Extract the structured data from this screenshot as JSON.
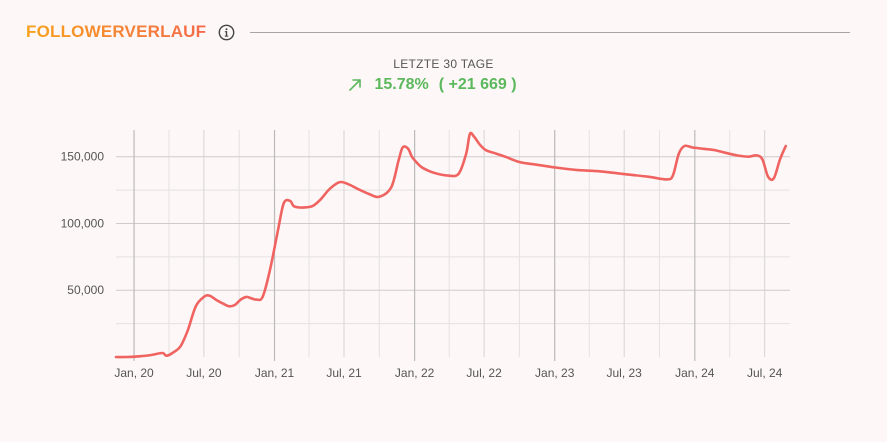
{
  "header": {
    "title": "FOLLOWERVERLAUF",
    "info_icon": "info-circle-icon"
  },
  "summary": {
    "period_label": "LETZTE 30 TAGE",
    "trend_icon": "arrow-up-right-icon",
    "percent_change": "15.78%",
    "absolute_change": "( +21 669 )",
    "positive_color": "#5cb85c"
  },
  "chart_data": {
    "type": "line",
    "title": "",
    "xlabel": "",
    "ylabel": "",
    "x_ticks": [
      "Jan, 20",
      "Jul, 20",
      "Jan, 21",
      "Jul, 21",
      "Jan, 22",
      "Jul, 22",
      "Jan, 23",
      "Jul, 23",
      "Jan, 24",
      "Jul, 24"
    ],
    "y_ticks": [
      "50,000",
      "100,000",
      "150,000"
    ],
    "y_tick_values": [
      50000,
      100000,
      150000
    ],
    "xlim": [
      "2019-11-15",
      "2024-09-05"
    ],
    "ylim": [
      0,
      170000
    ],
    "grid": true,
    "line_color": "#ef6461",
    "series": [
      {
        "x": [
          "2019-11-15",
          "2019-12-15",
          "2020-01-15",
          "2020-02-15",
          "2020-03-15",
          "2020-03-25",
          "2020-04-10",
          "2020-05-01",
          "2020-05-20",
          "2020-06-10",
          "2020-07-01",
          "2020-07-15",
          "2020-08-01",
          "2020-08-20",
          "2020-09-05",
          "2020-09-20",
          "2020-10-05",
          "2020-10-20",
          "2020-11-01",
          "2020-11-15",
          "2020-12-01",
          "2020-12-20",
          "2021-01-10",
          "2021-01-25",
          "2021-02-10",
          "2021-02-20",
          "2021-03-05",
          "2021-03-20",
          "2021-04-10",
          "2021-05-01",
          "2021-05-25",
          "2021-06-20",
          "2021-07-15",
          "2021-08-05",
          "2021-08-20",
          "2021-09-05",
          "2021-10-01",
          "2021-11-01",
          "2021-11-20",
          "2021-12-01",
          "2021-12-15",
          "2021-12-25",
          "2022-01-05",
          "2022-01-20",
          "2022-02-10",
          "2022-03-05",
          "2022-03-25",
          "2022-04-25",
          "2022-05-15",
          "2022-05-25",
          "2022-06-05",
          "2022-06-20",
          "2022-07-05",
          "2022-07-25",
          "2022-08-25",
          "2022-10-01",
          "2022-11-15",
          "2023-01-01",
          "2023-03-01",
          "2023-05-01",
          "2023-07-01",
          "2023-09-01",
          "2023-10-20",
          "2023-11-05",
          "2023-11-20",
          "2023-12-05",
          "2023-12-25",
          "2024-01-20",
          "2024-02-20",
          "2024-03-20",
          "2024-04-20",
          "2024-05-20",
          "2024-06-10",
          "2024-06-25",
          "2024-07-10",
          "2024-07-25",
          "2024-08-10",
          "2024-08-25"
        ],
        "y": [
          0,
          0,
          500,
          1500,
          3000,
          1000,
          3000,
          8000,
          20000,
          38000,
          45000,
          46000,
          43000,
          40000,
          38000,
          39000,
          43000,
          45000,
          44000,
          43000,
          45000,
          65000,
          95000,
          115000,
          117000,
          113000,
          112000,
          112000,
          113000,
          118000,
          126000,
          131000,
          129000,
          126000,
          124000,
          122000,
          120000,
          127000,
          147000,
          157000,
          156000,
          150000,
          146000,
          142000,
          139000,
          137000,
          136000,
          137000,
          152000,
          167000,
          165000,
          159000,
          155000,
          153000,
          150000,
          146000,
          144000,
          142000,
          140000,
          139000,
          137000,
          135000,
          133000,
          136000,
          152000,
          158000,
          157000,
          156000,
          155000,
          153000,
          151000,
          150000,
          151000,
          148000,
          135000,
          134000,
          148000,
          158000
        ]
      }
    ]
  }
}
